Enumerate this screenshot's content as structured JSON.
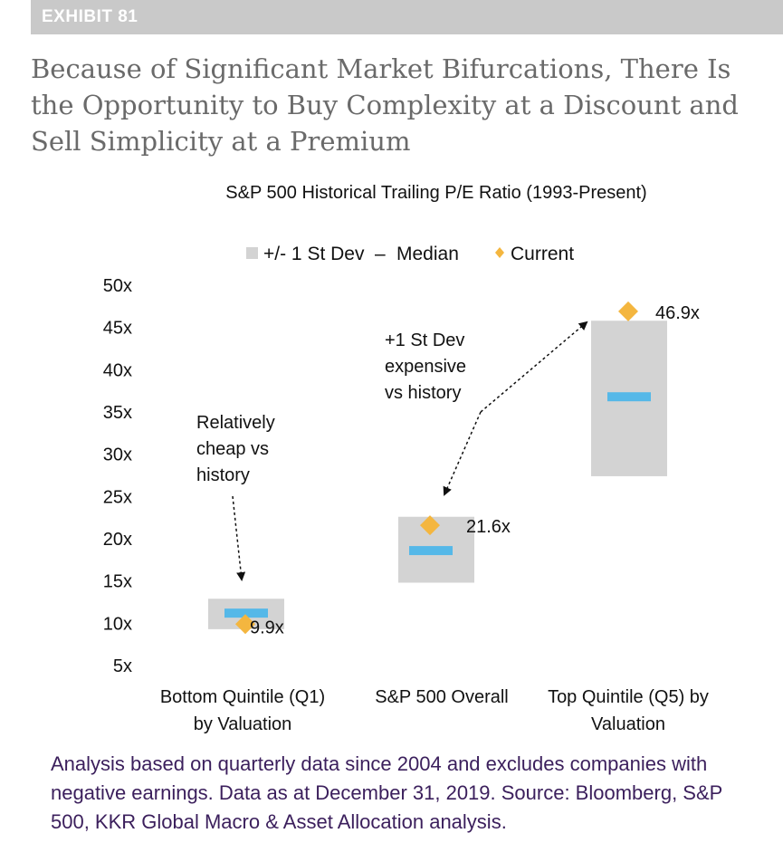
{
  "exhibit_label": "EXHIBIT 81",
  "headline": "Because of Significant Market Bifurcations, There Is the Opportunity to Buy Complexity at a Discount and Sell Simplicity at a Premium",
  "chart_data": {
    "type": "range-bar",
    "title": "S&P 500 Historical Trailing P/E Ratio (1993-Present)",
    "xlabel": "",
    "ylabel": "",
    "ylim": [
      5,
      50
    ],
    "yticks": [
      "5x",
      "10x",
      "15x",
      "20x",
      "25x",
      "30x",
      "35x",
      "40x",
      "45x",
      "50x"
    ],
    "ytick_values": [
      5,
      10,
      15,
      20,
      25,
      30,
      35,
      40,
      45,
      50
    ],
    "grid": false,
    "legend": {
      "placement": "top-center",
      "items": [
        {
          "label": "+/- 1 St Dev",
          "color": "#d3d3d3",
          "marker": "square"
        },
        {
          "label": "Median",
          "color": "#55b8e8",
          "marker": "dash"
        },
        {
          "label": "Current",
          "color": "#f4b63f",
          "marker": "diamond"
        }
      ]
    },
    "categories": [
      {
        "lines": [
          "Bottom Quintile (Q1)",
          "by Valuation"
        ],
        "low": 9.3,
        "high": 12.9,
        "median": 11.2,
        "current": 9.9,
        "current_label": "9.9x"
      },
      {
        "lines": [
          "S&P 500 Overall"
        ],
        "low": 14.8,
        "high": 22.6,
        "median": 18.6,
        "current": 21.6,
        "current_label": "21.6x"
      },
      {
        "lines": [
          "Top Quintile (Q5) by",
          "Valuation"
        ],
        "low": 27.4,
        "high": 45.8,
        "median": 36.8,
        "current": 46.9,
        "current_label": "46.9x"
      }
    ],
    "annotations": [
      {
        "lines": [
          "Relatively",
          "cheap vs",
          "history"
        ]
      },
      {
        "lines": [
          "+1 St Dev",
          "expensive",
          "vs history"
        ]
      }
    ],
    "colors": {
      "range": "#d3d3d3",
      "median": "#55b8e8",
      "current": "#f4b63f",
      "text": "#111111"
    }
  },
  "footnote": "Analysis based on quarterly data since 2004 and excludes companies with negative earnings. Data as at December 31, 2019. Source: Bloomberg, S&P 500, KKR Global Macro & Asset Allocation analysis."
}
